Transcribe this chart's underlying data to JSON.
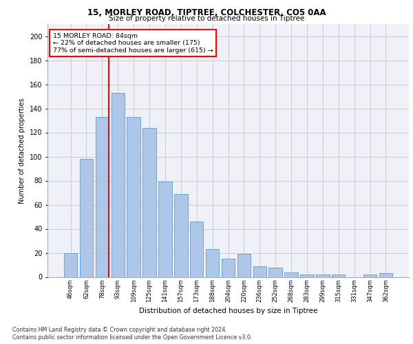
{
  "title1": "15, MORLEY ROAD, TIPTREE, COLCHESTER, CO5 0AA",
  "title2": "Size of property relative to detached houses in Tiptree",
  "xlabel": "Distribution of detached houses by size in Tiptree",
  "ylabel": "Number of detached properties",
  "categories": [
    "46sqm",
    "62sqm",
    "78sqm",
    "93sqm",
    "109sqm",
    "125sqm",
    "141sqm",
    "157sqm",
    "173sqm",
    "188sqm",
    "204sqm",
    "220sqm",
    "236sqm",
    "252sqm",
    "268sqm",
    "283sqm",
    "299sqm",
    "315sqm",
    "331sqm",
    "347sqm",
    "362sqm"
  ],
  "values": [
    20,
    98,
    133,
    153,
    133,
    124,
    79,
    69,
    46,
    23,
    15,
    19,
    9,
    8,
    4,
    2,
    2,
    2,
    0,
    2,
    3
  ],
  "bar_color": "#aec6e8",
  "bar_edge_color": "#5b9bd5",
  "vline_x": 2,
  "vline_color": "red",
  "annotation_text": "15 MORLEY ROAD: 84sqm\n← 22% of detached houses are smaller (175)\n77% of semi-detached houses are larger (615) →",
  "annotation_box_color": "white",
  "annotation_box_edge": "red",
  "ylim": [
    0,
    210
  ],
  "yticks": [
    0,
    20,
    40,
    60,
    80,
    100,
    120,
    140,
    160,
    180,
    200
  ],
  "grid_color": "#cccccc",
  "bg_color": "#eef2f8",
  "footnote1": "Contains HM Land Registry data © Crown copyright and database right 2024.",
  "footnote2": "Contains public sector information licensed under the Open Government Licence v3.0."
}
